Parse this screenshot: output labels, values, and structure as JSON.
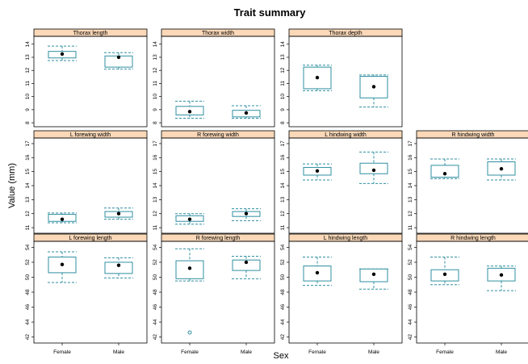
{
  "chart_data": {
    "type": "box",
    "title": "Trait summary",
    "xlabel": "Sex",
    "ylabel": "Value (mm)",
    "categories": [
      "Female",
      "Male"
    ],
    "colors": {
      "strip_bg": "#fad8b8",
      "box": "#2f8fa0",
      "whisker": "#2f8fa0",
      "median": "#000000",
      "outlier": "#2f8fa0",
      "panel_border": "#000000"
    },
    "panels": [
      {
        "name": "Thorax length",
        "row": 0,
        "col": 0,
        "ylim": [
          7.7,
          14.6
        ],
        "yticks": [
          8,
          9,
          10,
          11,
          12,
          13,
          14
        ],
        "boxes": [
          {
            "category": "Female",
            "whisker_low": 12.75,
            "q1": 12.95,
            "median": 13.25,
            "q3": 13.45,
            "whisker_high": 13.85,
            "outliers": []
          },
          {
            "category": "Male",
            "whisker_low": 12.1,
            "q1": 12.25,
            "median": 13.0,
            "q3": 13.1,
            "whisker_high": 13.35,
            "outliers": []
          }
        ]
      },
      {
        "name": "Thorax width",
        "row": 0,
        "col": 1,
        "ylim": [
          7.7,
          14.6
        ],
        "yticks": [
          8,
          9,
          10,
          11,
          12,
          13,
          14
        ],
        "boxes": [
          {
            "category": "Female",
            "whisker_low": 8.35,
            "q1": 8.6,
            "median": 8.85,
            "q3": 9.25,
            "whisker_high": 9.65,
            "outliers": []
          },
          {
            "category": "Male",
            "whisker_low": 8.35,
            "q1": 8.45,
            "median": 8.75,
            "q3": 8.95,
            "whisker_high": 9.3,
            "outliers": []
          }
        ]
      },
      {
        "name": "Thorax depth",
        "row": 0,
        "col": 2,
        "ylim": [
          7.7,
          14.6
        ],
        "yticks": [
          8,
          9,
          10,
          11,
          12,
          13,
          14
        ],
        "boxes": [
          {
            "category": "Female",
            "whisker_low": 10.45,
            "q1": 10.6,
            "median": 11.45,
            "q3": 12.25,
            "whisker_high": 12.4,
            "outliers": []
          },
          {
            "category": "Male",
            "whisker_low": 9.2,
            "q1": 9.9,
            "median": 10.75,
            "q3": 11.55,
            "whisker_high": 11.65,
            "outliers": []
          }
        ]
      },
      {
        "name": "L forewing width",
        "row": 1,
        "col": 0,
        "ylim": [
          10.6,
          17.4
        ],
        "yticks": [
          11,
          12,
          13,
          14,
          15,
          16,
          17
        ],
        "boxes": [
          {
            "category": "Female",
            "whisker_low": 11.35,
            "q1": 11.45,
            "median": 11.6,
            "q3": 11.95,
            "whisker_high": 12.05,
            "outliers": []
          },
          {
            "category": "Male",
            "whisker_low": 11.6,
            "q1": 11.75,
            "median": 12.0,
            "q3": 12.15,
            "whisker_high": 12.4,
            "outliers": []
          }
        ]
      },
      {
        "name": "R forewing width",
        "row": 1,
        "col": 1,
        "ylim": [
          10.6,
          17.4
        ],
        "yticks": [
          11,
          12,
          13,
          14,
          15,
          16,
          17
        ],
        "boxes": [
          {
            "category": "Female",
            "whisker_low": 11.25,
            "q1": 11.45,
            "median": 11.6,
            "q3": 11.85,
            "whisker_high": 12.0,
            "outliers": []
          },
          {
            "category": "Male",
            "whisker_low": 11.5,
            "q1": 11.8,
            "median": 12.0,
            "q3": 12.15,
            "whisker_high": 12.35,
            "outliers": []
          }
        ]
      },
      {
        "name": "L hindwing width",
        "row": 1,
        "col": 2,
        "ylim": [
          10.6,
          17.4
        ],
        "yticks": [
          11,
          12,
          13,
          14,
          15,
          16,
          17
        ],
        "boxes": [
          {
            "category": "Female",
            "whisker_low": 14.4,
            "q1": 14.75,
            "median": 15.05,
            "q3": 15.3,
            "whisker_high": 15.55,
            "outliers": []
          },
          {
            "category": "Male",
            "whisker_low": 14.15,
            "q1": 14.85,
            "median": 15.1,
            "q3": 15.6,
            "whisker_high": 16.4,
            "outliers": []
          }
        ]
      },
      {
        "name": "R hindwing width",
        "row": 1,
        "col": 3,
        "ylim": [
          10.6,
          17.4
        ],
        "yticks": [
          11,
          12,
          13,
          14,
          15,
          16,
          17
        ],
        "boxes": [
          {
            "category": "Female",
            "whisker_low": 14.5,
            "q1": 14.6,
            "median": 14.85,
            "q3": 15.45,
            "whisker_high": 15.9,
            "outliers": []
          },
          {
            "category": "Male",
            "whisker_low": 14.4,
            "q1": 14.75,
            "median": 15.2,
            "q3": 15.7,
            "whisker_high": 15.9,
            "outliers": []
          }
        ]
      },
      {
        "name": "L forewing length",
        "row": 2,
        "col": 0,
        "ylim": [
          41.2,
          54.8
        ],
        "yticks": [
          42,
          44,
          46,
          48,
          50,
          52,
          54
        ],
        "boxes": [
          {
            "category": "Female",
            "whisker_low": 49.3,
            "q1": 50.6,
            "median": 51.7,
            "q3": 52.7,
            "whisker_high": 53.4,
            "outliers": []
          },
          {
            "category": "Male",
            "whisker_low": 49.9,
            "q1": 50.5,
            "median": 51.6,
            "q3": 52.0,
            "whisker_high": 52.6,
            "outliers": []
          }
        ]
      },
      {
        "name": "R forewing length",
        "row": 2,
        "col": 1,
        "ylim": [
          41.2,
          54.8
        ],
        "yticks": [
          42,
          44,
          46,
          48,
          50,
          52,
          54
        ],
        "boxes": [
          {
            "category": "Female",
            "whisker_low": 49.5,
            "q1": 49.8,
            "median": 51.2,
            "q3": 52.2,
            "whisker_high": 53.8,
            "outliers": [
              42.6
            ]
          },
          {
            "category": "Male",
            "whisker_low": 49.8,
            "q1": 50.9,
            "median": 52.0,
            "q3": 52.3,
            "whisker_high": 52.8,
            "outliers": []
          }
        ]
      },
      {
        "name": "L hindwing length",
        "row": 2,
        "col": 2,
        "ylim": [
          41.2,
          54.8
        ],
        "yticks": [
          42,
          44,
          46,
          48,
          50,
          52,
          54
        ],
        "boxes": [
          {
            "category": "Female",
            "whisker_low": 48.9,
            "q1": 49.5,
            "median": 50.6,
            "q3": 51.5,
            "whisker_high": 52.7,
            "outliers": []
          },
          {
            "category": "Male",
            "whisker_low": 48.4,
            "q1": 49.4,
            "median": 50.4,
            "q3": 51.1,
            "whisker_high": 51.1,
            "outliers": []
          }
        ]
      },
      {
        "name": "R hindwing length",
        "row": 2,
        "col": 3,
        "ylim": [
          41.2,
          54.8
        ],
        "yticks": [
          42,
          44,
          46,
          48,
          50,
          52,
          54
        ],
        "boxes": [
          {
            "category": "Female",
            "whisker_low": 49.0,
            "q1": 49.5,
            "median": 50.4,
            "q3": 51.0,
            "whisker_high": 52.7,
            "outliers": []
          },
          {
            "category": "Male",
            "whisker_low": 48.2,
            "q1": 49.5,
            "median": 50.3,
            "q3": 51.2,
            "whisker_high": 51.5,
            "outliers": []
          }
        ]
      }
    ]
  }
}
